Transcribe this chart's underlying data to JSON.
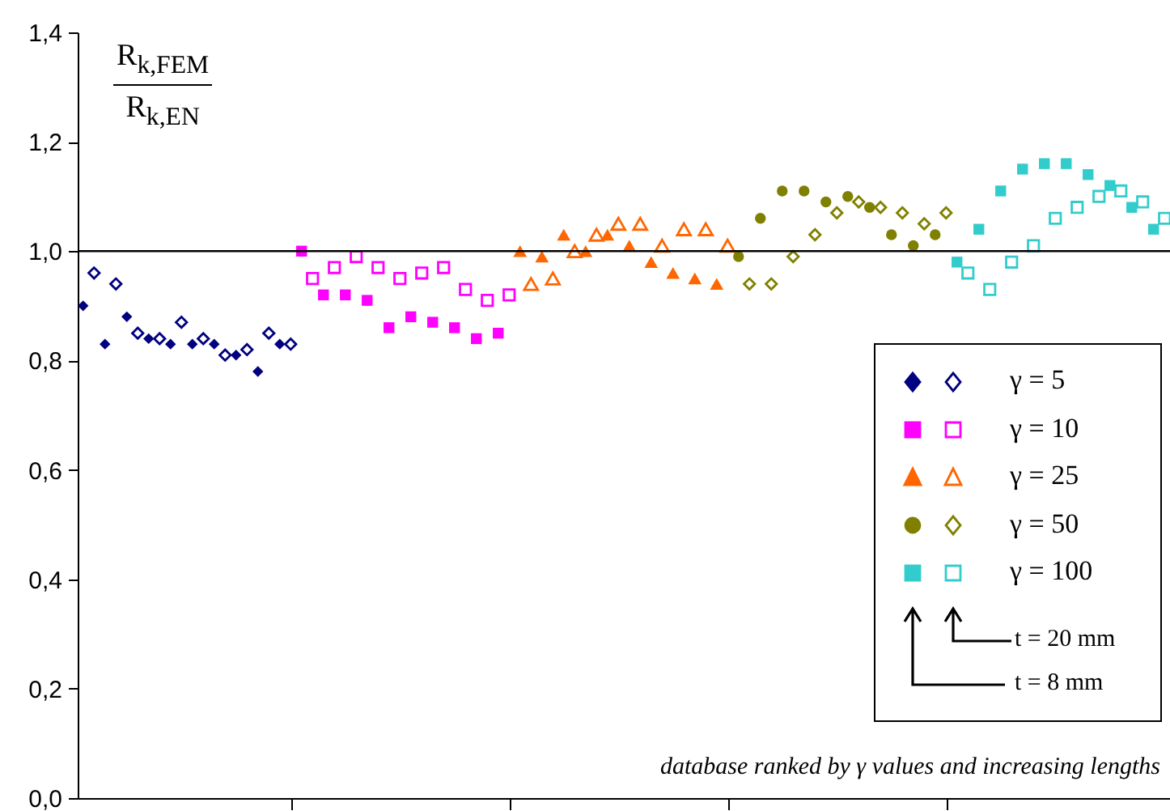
{
  "chart_data": {
    "type": "scatter",
    "ylabel": "R$_{k,FEM}$ R$_{k,EN}$",
    "annotations": [
      "t = 20 mm",
      "t = 8 mm",
      "database ranked by γ values and increasing lengths"
    ],
    "categories": [
      null,
      null,
      null,
      null,
      null,
      null,
      null,
      null,
      null,
      null,
      null,
      null,
      null,
      null,
      null,
      null,
      null,
      null,
      null,
      null,
      null,
      null,
      null,
      null,
      null,
      null,
      null,
      null,
      null,
      null,
      null,
      null,
      null,
      null,
      null,
      null,
      null,
      null,
      null,
      null,
      null,
      null,
      null,
      null,
      null,
      null,
      null,
      null,
      null,
      null,
      null,
      null,
      null,
      null,
      null,
      null,
      null,
      null,
      null,
      null,
      null,
      null,
      null,
      null,
      null,
      null,
      null,
      null,
      null,
      null,
      null,
      null,
      null,
      null,
      null,
      null,
      null,
      null,
      null,
      null,
      null,
      null,
      null,
      null,
      null,
      null,
      null,
      null,
      null,
      null,
      null,
      null,
      null,
      null,
      null,
      null,
      null,
      null,
      null,
      null
    ],
    "ylim": [
      0,
      1.4
    ],
    "yticks": [
      {
        "value": 0,
        "label": "0,0"
      },
      {
        "value": 0.2,
        "label": "0,2"
      },
      {
        "value": 0.4,
        "label": "0,4"
      },
      {
        "value": 0.6,
        "label": "0,6"
      },
      {
        "value": 0.8,
        "label": "0,8"
      },
      {
        "value": 1.0,
        "label": "1,0"
      },
      {
        "value": 1.2,
        "label": "1,2"
      },
      {
        "value": 1.4,
        "label": "1,4"
      }
    ],
    "tick_labels": "y",
    "grid": false,
    "legend": "bottom right",
    "ref_lines": [
      {
        "axis": "y",
        "value": 1.0,
        "color": "#000000"
      }
    ],
    "series": [
      {
        "name": "γ = 5",
        "color": "#000080",
        "marker": "diamond",
        "values": [
          0.9,
          null,
          0.83,
          null,
          0.88,
          null,
          0.84,
          null,
          0.83,
          null,
          0.83,
          null,
          0.83,
          null,
          0.81,
          null,
          0.78,
          null,
          0.83,
          null,
          null,
          null,
          null,
          null,
          null,
          null,
          null,
          null,
          null,
          null,
          null,
          null,
          null,
          null,
          null,
          null,
          null,
          null,
          null,
          null,
          null,
          null,
          null,
          null,
          null,
          null,
          null,
          null,
          null,
          null,
          null,
          null,
          null,
          null,
          null,
          null,
          null,
          null,
          null,
          null,
          null,
          null,
          null,
          null,
          null,
          null,
          null,
          null,
          null,
          null,
          null,
          null,
          null,
          null,
          null,
          null,
          null,
          null,
          null,
          null,
          null,
          null,
          null,
          null,
          null,
          null,
          null,
          null,
          null,
          null,
          null,
          null,
          null,
          null,
          null,
          null,
          null,
          null,
          null,
          null
        ]
      },
      {
        "color": "#000080",
        "marker": "diamond",
        "values": [
          null,
          0.96,
          null,
          0.94,
          null,
          0.85,
          null,
          0.84,
          null,
          0.87,
          null,
          0.84,
          null,
          0.81,
          null,
          0.82,
          null,
          0.85,
          null,
          0.83,
          null,
          null,
          null,
          null,
          null,
          null,
          null,
          null,
          null,
          null,
          null,
          null,
          null,
          null,
          null,
          null,
          null,
          null,
          null,
          null,
          null,
          null,
          null,
          null,
          null,
          null,
          null,
          null,
          null,
          null,
          null,
          null,
          null,
          null,
          null,
          null,
          null,
          null,
          null,
          null,
          null,
          null,
          null,
          null,
          null,
          null,
          null,
          null,
          null,
          null,
          null,
          null,
          null,
          null,
          null,
          null,
          null,
          null,
          null,
          null,
          null,
          null,
          null,
          null,
          null,
          null,
          null,
          null,
          null,
          null,
          null,
          null,
          null,
          null,
          null,
          null,
          null,
          null,
          null,
          null
        ]
      },
      {
        "name": "γ = 10",
        "color": "#ff00ff",
        "marker": "square",
        "values": [
          null,
          null,
          null,
          null,
          null,
          null,
          null,
          null,
          null,
          null,
          null,
          null,
          null,
          null,
          null,
          null,
          null,
          null,
          null,
          null,
          1.0,
          null,
          0.92,
          null,
          0.92,
          null,
          0.91,
          null,
          0.86,
          null,
          0.88,
          null,
          0.87,
          null,
          0.86,
          null,
          0.84,
          null,
          0.85,
          null,
          null,
          null,
          null,
          null,
          null,
          null,
          null,
          null,
          null,
          null,
          null,
          null,
          null,
          null,
          null,
          null,
          null,
          null,
          null,
          null,
          null,
          null,
          null,
          null,
          null,
          null,
          null,
          null,
          null,
          null,
          null,
          null,
          null,
          null,
          null,
          null,
          null,
          null,
          null,
          null,
          null,
          null,
          null,
          null,
          null,
          null,
          null,
          null,
          null,
          null,
          null,
          null,
          null,
          null,
          null,
          null,
          null,
          null,
          null,
          null
        ]
      },
      {
        "color": "#ff00ff",
        "marker": "square",
        "values": [
          null,
          null,
          null,
          null,
          null,
          null,
          null,
          null,
          null,
          null,
          null,
          null,
          null,
          null,
          null,
          null,
          null,
          null,
          null,
          null,
          null,
          0.95,
          null,
          0.97,
          null,
          0.99,
          null,
          0.97,
          null,
          0.95,
          null,
          0.96,
          null,
          0.97,
          null,
          0.93,
          null,
          0.91,
          null,
          0.92,
          null,
          null,
          null,
          null,
          null,
          null,
          null,
          null,
          null,
          null,
          null,
          null,
          null,
          null,
          null,
          null,
          null,
          null,
          null,
          null,
          null,
          null,
          null,
          null,
          null,
          null,
          null,
          null,
          null,
          null,
          null,
          null,
          null,
          null,
          null,
          null,
          null,
          null,
          null,
          null,
          null,
          null,
          null,
          null,
          null,
          null,
          null,
          null,
          null,
          null,
          null,
          null,
          null,
          null,
          null,
          null,
          null,
          null,
          null,
          null
        ]
      },
      {
        "name": "γ = 25",
        "color": "#ff6600",
        "marker": "triangle",
        "values": [
          null,
          null,
          null,
          null,
          null,
          null,
          null,
          null,
          null,
          null,
          null,
          null,
          null,
          null,
          null,
          null,
          null,
          null,
          null,
          null,
          null,
          null,
          null,
          null,
          null,
          null,
          null,
          null,
          null,
          null,
          null,
          null,
          null,
          null,
          null,
          null,
          null,
          null,
          null,
          null,
          1.0,
          null,
          0.99,
          null,
          1.03,
          null,
          1.0,
          null,
          1.03,
          null,
          1.01,
          null,
          0.98,
          null,
          0.96,
          null,
          0.95,
          null,
          0.94,
          null,
          null,
          null,
          null,
          null,
          null,
          null,
          null,
          null,
          null,
          null,
          null,
          null,
          null,
          null,
          null,
          null,
          null,
          null,
          null,
          null,
          null,
          null,
          null,
          null,
          null,
          null,
          null,
          null,
          null,
          null,
          null,
          null,
          null,
          null,
          null,
          null,
          null,
          null,
          null,
          null
        ]
      },
      {
        "color": "#ff6600",
        "marker": "triangle",
        "values": [
          null,
          null,
          null,
          null,
          null,
          null,
          null,
          null,
          null,
          null,
          null,
          null,
          null,
          null,
          null,
          null,
          null,
          null,
          null,
          null,
          null,
          null,
          null,
          null,
          null,
          null,
          null,
          null,
          null,
          null,
          null,
          null,
          null,
          null,
          null,
          null,
          null,
          null,
          null,
          null,
          null,
          0.94,
          null,
          0.95,
          null,
          1.0,
          null,
          1.03,
          null,
          1.05,
          null,
          1.05,
          null,
          1.01,
          null,
          1.04,
          null,
          1.04,
          null,
          1.01,
          null,
          null,
          null,
          null,
          null,
          null,
          null,
          null,
          null,
          null,
          null,
          null,
          null,
          null,
          null,
          null,
          null,
          null,
          null,
          null,
          null,
          null,
          null,
          null,
          null,
          null,
          null,
          null,
          null,
          null,
          null,
          null,
          null,
          null,
          null,
          null,
          null,
          null,
          null,
          null
        ]
      },
      {
        "name": "γ = 50",
        "color": "#808000",
        "marker": "circle",
        "values": [
          null,
          null,
          null,
          null,
          null,
          null,
          null,
          null,
          null,
          null,
          null,
          null,
          null,
          null,
          null,
          null,
          null,
          null,
          null,
          null,
          null,
          null,
          null,
          null,
          null,
          null,
          null,
          null,
          null,
          null,
          null,
          null,
          null,
          null,
          null,
          null,
          null,
          null,
          null,
          null,
          null,
          null,
          null,
          null,
          null,
          null,
          null,
          null,
          null,
          null,
          null,
          null,
          null,
          null,
          null,
          null,
          null,
          null,
          null,
          null,
          0.99,
          null,
          1.06,
          null,
          1.11,
          null,
          1.11,
          null,
          1.09,
          null,
          1.1,
          null,
          1.08,
          null,
          1.03,
          null,
          1.01,
          null,
          1.03,
          null,
          null,
          null,
          null,
          null,
          null,
          null,
          null,
          null,
          null,
          null,
          null,
          null,
          null,
          null,
          null,
          null,
          null,
          null,
          null,
          null
        ]
      },
      {
        "color": "#808000",
        "marker": "diamond",
        "values": [
          null,
          null,
          null,
          null,
          null,
          null,
          null,
          null,
          null,
          null,
          null,
          null,
          null,
          null,
          null,
          null,
          null,
          null,
          null,
          null,
          null,
          null,
          null,
          null,
          null,
          null,
          null,
          null,
          null,
          null,
          null,
          null,
          null,
          null,
          null,
          null,
          null,
          null,
          null,
          null,
          null,
          null,
          null,
          null,
          null,
          null,
          null,
          null,
          null,
          null,
          null,
          null,
          null,
          null,
          null,
          null,
          null,
          null,
          null,
          null,
          null,
          0.94,
          null,
          0.94,
          null,
          0.99,
          null,
          1.03,
          null,
          1.07,
          null,
          1.09,
          null,
          1.08,
          null,
          1.07,
          null,
          1.05,
          null,
          1.07,
          null,
          null,
          null,
          null,
          null,
          null,
          null,
          null,
          null,
          null,
          null,
          null,
          null,
          null,
          null,
          null,
          null,
          null,
          null,
          null
        ]
      },
      {
        "name": "γ = 100",
        "color": "#33cccc",
        "marker": "square",
        "values": [
          null,
          null,
          null,
          null,
          null,
          null,
          null,
          null,
          null,
          null,
          null,
          null,
          null,
          null,
          null,
          null,
          null,
          null,
          null,
          null,
          null,
          null,
          null,
          null,
          null,
          null,
          null,
          null,
          null,
          null,
          null,
          null,
          null,
          null,
          null,
          null,
          null,
          null,
          null,
          null,
          null,
          null,
          null,
          null,
          null,
          null,
          null,
          null,
          null,
          null,
          null,
          null,
          null,
          null,
          null,
          null,
          null,
          null,
          null,
          null,
          null,
          null,
          null,
          null,
          null,
          null,
          null,
          null,
          null,
          null,
          null,
          null,
          null,
          null,
          null,
          null,
          null,
          null,
          null,
          null,
          0.98,
          null,
          1.04,
          null,
          1.11,
          null,
          1.15,
          null,
          1.16,
          null,
          1.16,
          null,
          1.14,
          null,
          1.12,
          null,
          1.08,
          null,
          1.04,
          null
        ]
      },
      {
        "color": "#33cccc",
        "marker": "square",
        "values": [
          null,
          null,
          null,
          null,
          null,
          null,
          null,
          null,
          null,
          null,
          null,
          null,
          null,
          null,
          null,
          null,
          null,
          null,
          null,
          null,
          null,
          null,
          null,
          null,
          null,
          null,
          null,
          null,
          null,
          null,
          null,
          null,
          null,
          null,
          null,
          null,
          null,
          null,
          null,
          null,
          null,
          null,
          null,
          null,
          null,
          null,
          null,
          null,
          null,
          null,
          null,
          null,
          null,
          null,
          null,
          null,
          null,
          null,
          null,
          null,
          null,
          null,
          null,
          null,
          null,
          null,
          null,
          null,
          null,
          null,
          null,
          null,
          null,
          null,
          null,
          null,
          null,
          null,
          null,
          null,
          null,
          0.96,
          null,
          0.93,
          null,
          0.98,
          null,
          1.01,
          null,
          1.06,
          null,
          1.08,
          null,
          1.1,
          null,
          1.11,
          null,
          1.09,
          null,
          1.06
        ]
      }
    ]
  }
}
